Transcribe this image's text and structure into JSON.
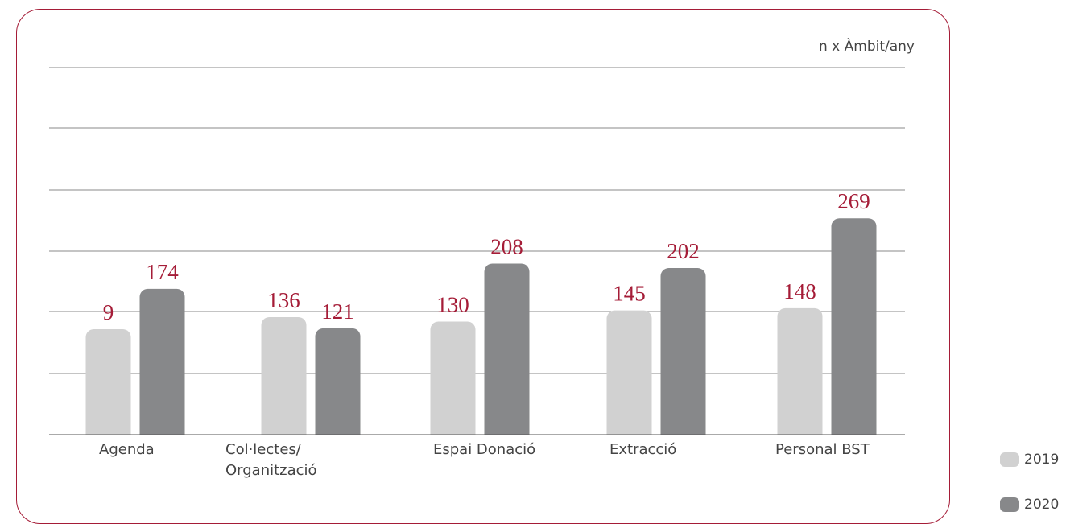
{
  "chart_data": {
    "type": "bar",
    "unit_label": "n x Àmbit/any",
    "categories": [
      "Agenda",
      "Col·lectes/\nOrganització",
      "Espai Donació",
      "Extracció",
      "Personal BST"
    ],
    "series": [
      {
        "name": "2019",
        "color": "#d1d1d1",
        "values": [
          9,
          136,
          130,
          145,
          148
        ]
      },
      {
        "name": "2020",
        "color": "#87888a",
        "values": [
          174,
          121,
          208,
          202,
          269
        ]
      }
    ],
    "label_color": "#a51c37",
    "grid": true,
    "legend_position": "bottom-right"
  }
}
